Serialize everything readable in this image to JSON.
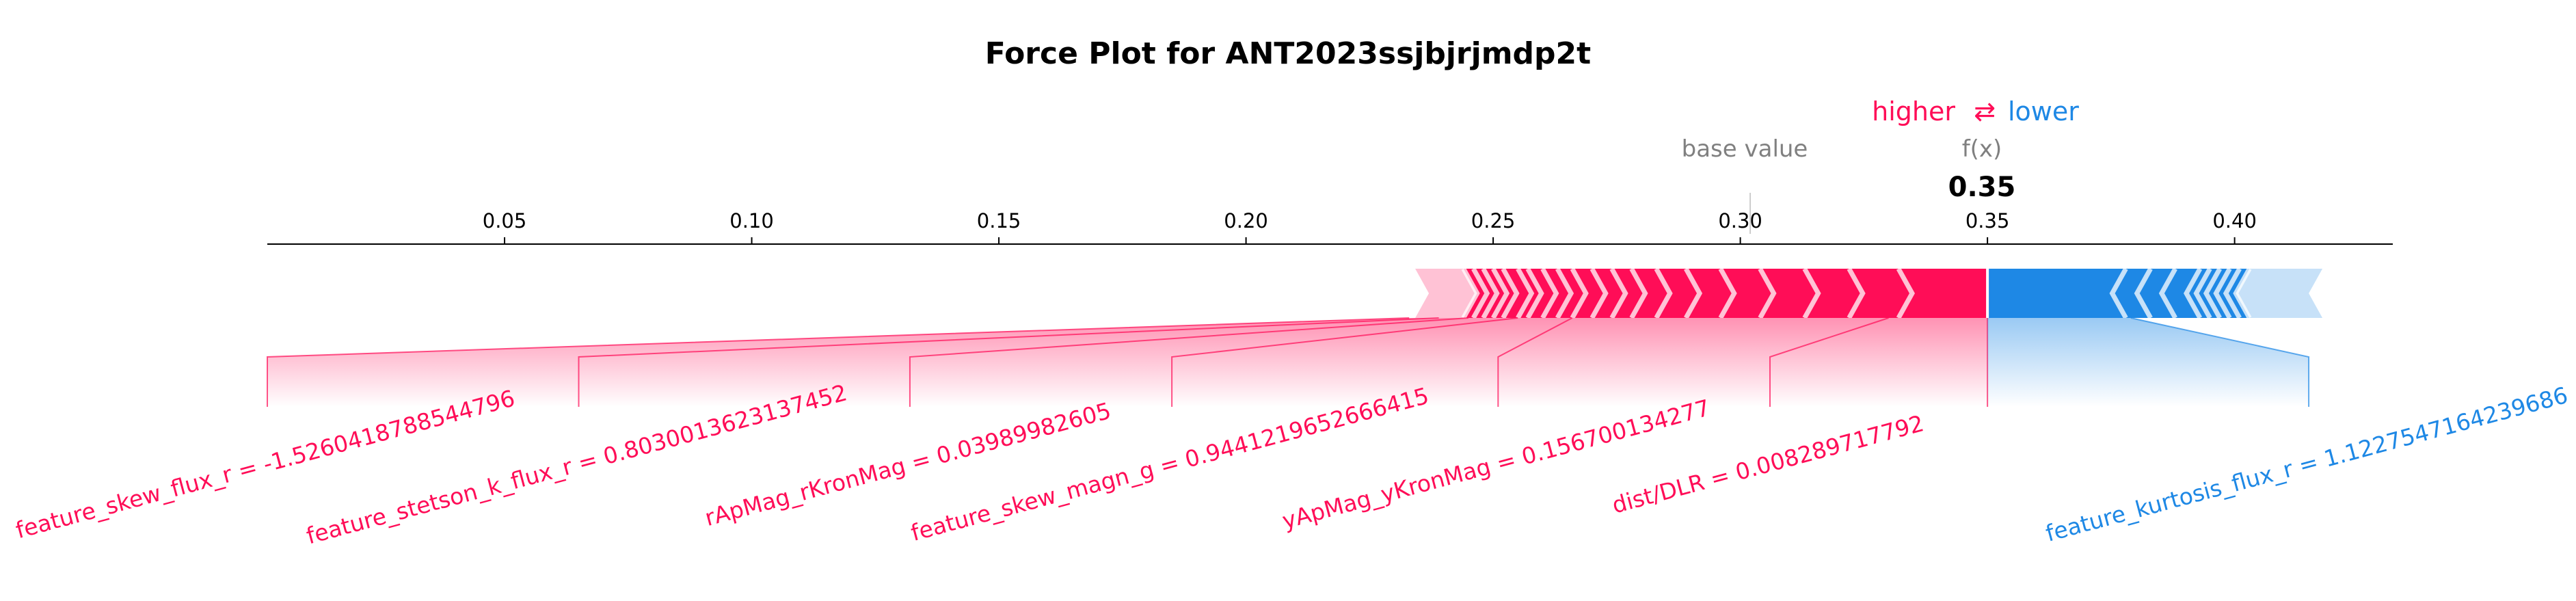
{
  "chart_data": {
    "type": "force",
    "title": "Force Plot for ANT2023ssjbjrjmdp2t",
    "higher_label": "higher",
    "arrow_symbol": "⇄",
    "lower_label": "lower",
    "base_value_label": "base value",
    "fx_label": "f(x)",
    "fx_value_text": "0.35",
    "fx_value": 0.35,
    "base_value": 0.302,
    "xlim": [
      0.002,
      0.432
    ],
    "ticks": [
      0.05,
      0.1,
      0.15,
      0.2,
      0.25,
      0.3,
      0.35,
      0.4
    ],
    "tick_labels": [
      "0.05",
      "0.10",
      "0.15",
      "0.20",
      "0.25",
      "0.30",
      "0.35",
      "0.40"
    ],
    "colors": {
      "positive": "#ff0d57",
      "negative": "#1e88e5"
    },
    "positive_start": 0.237,
    "negative_end": 0.415,
    "positive_segment_boundaries": [
      0.237,
      0.244,
      0.246,
      0.248,
      0.25,
      0.252,
      0.255,
      0.257,
      0.26,
      0.263,
      0.266,
      0.27,
      0.274,
      0.278,
      0.283,
      0.289,
      0.296,
      0.304,
      0.313,
      0.322,
      0.332,
      0.35
    ],
    "negative_segment_boundaries": [
      0.35,
      0.378,
      0.383,
      0.388,
      0.393,
      0.395,
      0.397,
      0.399,
      0.401,
      0.403,
      0.415
    ],
    "positive_labels": [
      {
        "text": "feature_skew_flux_r = -1.5260418788544796",
        "center": 0.002,
        "edge": 0.233
      },
      {
        "text": "feature_stetson_k_flux_r = 0.8030013623137452",
        "center": 0.065,
        "edge": 0.239
      },
      {
        "text": "rApMag_rKronMag = 0.03989982605",
        "center": 0.132,
        "edge": 0.245
      },
      {
        "text": "feature_skew_magn_g = 0.9441219652666415",
        "center": 0.185,
        "edge": 0.255
      },
      {
        "text": "yApMag_yKronMag = 0.156700134277",
        "center": 0.251,
        "edge": 0.266
      },
      {
        "text": "dist/DLR = 0.008289717792",
        "center": 0.306,
        "edge": 0.33
      }
    ],
    "negative_labels": [
      {
        "text": "feature_kurtosis_flux_r = 1.1227547164239686",
        "center": 0.415,
        "edge": 0.379
      }
    ]
  }
}
